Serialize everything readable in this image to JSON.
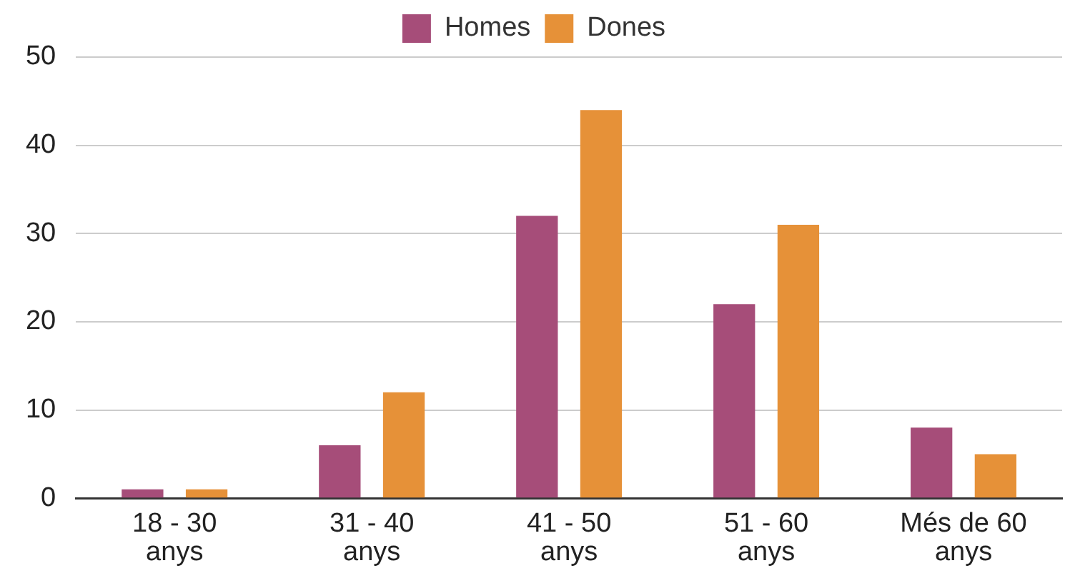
{
  "chart_data": {
    "type": "bar",
    "categories": [
      "18 - 30 anys",
      "31 - 40 anys",
      "41 - 50 anys",
      "51 - 60 anys",
      "Més de 60 anys"
    ],
    "series": [
      {
        "name": "Homes",
        "color": "#a64d79",
        "values": [
          1,
          6,
          32,
          22,
          8
        ]
      },
      {
        "name": "Dones",
        "color": "#e69138",
        "values": [
          1,
          12,
          44,
          31,
          5
        ]
      }
    ],
    "ylim": [
      0,
      50
    ],
    "yticks": [
      0,
      10,
      20,
      30,
      40,
      50
    ],
    "grid": "y",
    "legend": "top"
  }
}
